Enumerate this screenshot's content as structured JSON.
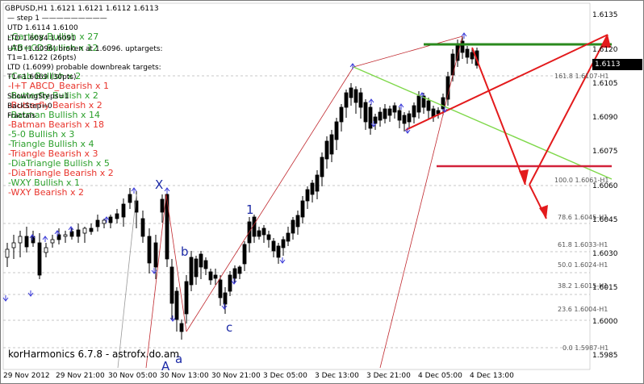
{
  "window": {
    "symbol_header": "GBPUSD,H1  1.6121  1.6121  1.6112  1.6113"
  },
  "header_lines": {
    "step": "—   step 1   —————————",
    "utd": "UTD 1.6114  1.6100",
    "ltd": "LTD 1.6084  1.6091",
    "utd_broken": "UTD (1.6096) broken at 1.6096. uptargets:",
    "t1_up": "T1=1.6122 (26pts)",
    "ltd_prob": "LTD (1.6099) probable downbreak targets:",
    "t1_down": "T1=1.6069 (30pts)",
    "showing": "ShowingSteps=1",
    "backstep": "BackStep=0",
    "fractals": "Fractals"
  },
  "legend": {
    "items": [
      {
        "text": "-Gartley Bullish x 27",
        "color": "green"
      },
      {
        "text": "-AB=CD Bullish x 12",
        "color": "green"
      },
      {
        "text": "-Crab Bullish x 2",
        "color": "green"
      },
      {
        "text": "-I+T ABCD_Bearish x 1",
        "color": "red"
      },
      {
        "text": "-Butterfly Bullish x 2",
        "color": "green"
      },
      {
        "text": "-Butterfly Bearish x 2",
        "color": "red"
      },
      {
        "text": "-Batman Bullish x 14",
        "color": "green"
      },
      {
        "text": "-Batman Bearish x 18",
        "color": "red"
      },
      {
        "text": "-5-0 Bullish x 3",
        "color": "green"
      },
      {
        "text": "-Triangle Bullish x 4",
        "color": "green"
      },
      {
        "text": "-Triangle Bearish x 3",
        "color": "red"
      },
      {
        "text": "-DiaTriangle Bullish x 5",
        "color": "green"
      },
      {
        "text": "-DiaTriangle Bearish x 2",
        "color": "red"
      },
      {
        "text": "-WXY Bullish x 1",
        "color": "green"
      },
      {
        "text": "-WXY Bearish x 2",
        "color": "red"
      }
    ]
  },
  "price_axis": {
    "ticks": [
      "1.6135",
      "1.6120",
      "1.6105",
      "1.6090",
      "1.6075",
      "1.6060",
      "1.6045",
      "1.6030",
      "1.6015",
      "1.6000",
      "1.5985"
    ],
    "current": "1.6113"
  },
  "time_axis": {
    "ticks": [
      "29 Nov 2012",
      "29 Nov 21:00",
      "30 Nov 05:00",
      "30 Nov 13:00",
      "30 Nov 21:00",
      "3 Dec 05:00",
      "3 Dec 13:00",
      "3 Dec 21:00",
      "4 Dec 05:00",
      "4 Dec 13:00"
    ]
  },
  "fib_levels": [
    {
      "label": "161.8  1.6107-H1"
    },
    {
      "label": "100.0  1.6061-H1"
    },
    {
      "label": "78.6  1.6045-H1"
    },
    {
      "label": "61.8  1.6033-H1"
    },
    {
      "label": "50.0  1.6024-H1"
    },
    {
      "label": "38.2  1.6015-H1"
    },
    {
      "label": "23.6  1.6004-H1"
    },
    {
      "label": "0.0  1.5987-H1"
    }
  ],
  "wave_labels": {
    "x": "X",
    "a": "a",
    "b": "b",
    "c": "c",
    "one": "1",
    "a_cap": "A"
  },
  "branding": "korHarmonics 6.7.8 - astrofx.do.am",
  "colors": {
    "bull": "#2ca02c",
    "bear": "#e8332b",
    "resistance": "#2a8a1e",
    "support": "#d2223a",
    "trendline": "#7fd84a",
    "pattern": "#c0282e",
    "arrow": "#e31a1c",
    "fractal": "#3a3ad8"
  }
}
